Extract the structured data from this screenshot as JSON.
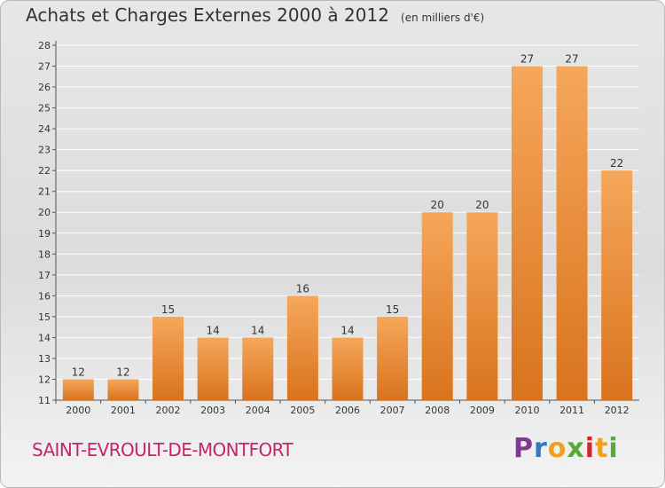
{
  "header": {
    "title": "Achats et Charges Externes 2000 à 2012",
    "unit": "(en milliers d'€)"
  },
  "footer": {
    "city": "SAINT-EVROULT-DE-MONTFORT",
    "logo_text": "Proxiti"
  },
  "colors": {
    "bar_light": "#f6a75a",
    "bar_dark": "#d9731e",
    "city": "#c5256a",
    "grid": "#ffffff",
    "text": "#333333"
  },
  "chart_data": {
    "type": "bar",
    "title": "Achats et Charges Externes 2000 à 2012",
    "subtitle": "(en milliers d'€)",
    "categories": [
      "2000",
      "2001",
      "2002",
      "2003",
      "2004",
      "2005",
      "2006",
      "2007",
      "2008",
      "2009",
      "2010",
      "2011",
      "2012"
    ],
    "values": [
      12,
      12,
      15,
      14,
      14,
      16,
      14,
      15,
      20,
      20,
      27,
      27,
      22
    ],
    "ylim": [
      11,
      28
    ],
    "yticks": [
      11,
      12,
      13,
      14,
      15,
      16,
      17,
      18,
      19,
      20,
      21,
      22,
      23,
      24,
      25,
      26,
      27,
      28
    ],
    "grid": true,
    "data_labels": true
  }
}
